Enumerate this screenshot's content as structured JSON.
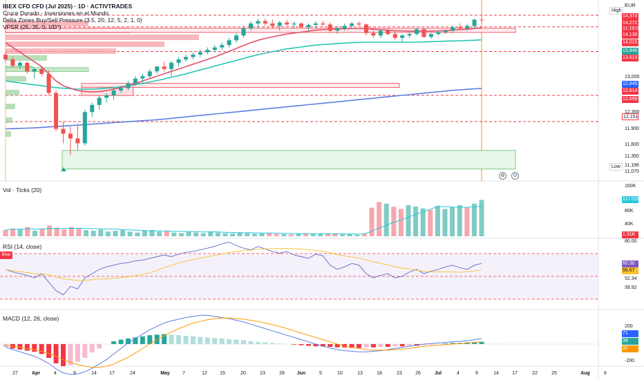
{
  "chart_data": [
    {
      "type": "candlestick",
      "title": "IBEX CFD CFD (Jul 2025) · 1D · ACTIVTRADES",
      "indicators": [
        "Cruce Dorado - Inversiones en el Mundo",
        "Delta Zones Buy/Sell Pressure (3.5, 20, 12, 5, 2, 1, 0)",
        "VPSR (25, 35, 5, UD*)"
      ],
      "currency": "EUR",
      "high_label": "High",
      "low_label": "Low",
      "x_ticks": [
        "27",
        "Apr",
        "4",
        "9",
        "14",
        "17",
        "24",
        "May",
        "7",
        "12",
        "15",
        "20",
        "23",
        "28",
        "Jun",
        "5",
        "10",
        "13",
        "18",
        "23",
        "26",
        "Jul",
        "4",
        "9",
        "14",
        "17",
        "22",
        "25",
        "Aug",
        "6"
      ],
      "y_ticks": [
        11070,
        11350,
        11600,
        11900,
        12151,
        12300,
        12699,
        13000,
        13615,
        14130,
        14373
      ],
      "price_labels": [
        {
          "value": "14,373",
          "color": "#f23645"
        },
        {
          "value": "14,272",
          "color": "#f23645"
        },
        {
          "value": "11:19:06",
          "color": "#f23645"
        },
        {
          "value": "14,130",
          "color": "#f23645"
        },
        {
          "value": "14,015",
          "color": "#f23645"
        },
        {
          "value": "13,846",
          "color": "#26a69a"
        },
        {
          "value": "13,615",
          "color": "#f23645"
        },
        {
          "value": "12,845",
          "color": "#2962ff"
        },
        {
          "value": "12,814",
          "color": "#f23645"
        },
        {
          "value": "12,699",
          "color": "#f23645"
        },
        {
          "value": "12,151",
          "color": "#ffffff"
        }
      ],
      "axis_labels": [
        "13,000",
        "12,300",
        "11,900",
        "11,600",
        "11,350",
        "11,196",
        "11,070"
      ],
      "candles": [
        [
          13550,
          13620,
          13380,
          13450
        ],
        [
          13450,
          13500,
          13280,
          13320
        ],
        [
          13320,
          13420,
          13250,
          13380
        ],
        [
          13380,
          13400,
          13150,
          13200
        ],
        [
          13200,
          13280,
          13050,
          13250
        ],
        [
          13250,
          13300,
          13100,
          13150
        ],
        [
          13150,
          13220,
          12700,
          12750
        ],
        [
          12750,
          12800,
          11950,
          12000
        ],
        [
          12000,
          12150,
          11700,
          11900
        ],
        [
          11900,
          12050,
          11450,
          11800
        ],
        [
          11800,
          12100,
          11550,
          11700
        ],
        [
          11700,
          12400,
          11650,
          12350
        ],
        [
          12350,
          12550,
          12250,
          12500
        ],
        [
          12500,
          12700,
          12400,
          12650
        ],
        [
          12650,
          12750,
          12550,
          12700
        ],
        [
          12700,
          12850,
          12600,
          12800
        ],
        [
          12800,
          12900,
          12750,
          12850
        ],
        [
          12850,
          13000,
          12800,
          12950
        ],
        [
          12950,
          13100,
          12900,
          13050
        ],
        [
          13050,
          13150,
          12950,
          13100
        ],
        [
          13100,
          13250,
          13050,
          13200
        ],
        [
          13200,
          13320,
          13150,
          13300
        ],
        [
          13300,
          13400,
          13200,
          13250
        ],
        [
          13250,
          13420,
          13100,
          13380
        ],
        [
          13380,
          13500,
          13300,
          13450
        ],
        [
          13450,
          13550,
          13400,
          13500
        ],
        [
          13500,
          13600,
          13450,
          13550
        ],
        [
          13550,
          13650,
          13500,
          13600
        ],
        [
          13600,
          13700,
          13550,
          13650
        ],
        [
          13650,
          13750,
          13600,
          13700
        ],
        [
          13700,
          13800,
          13650,
          13750
        ],
        [
          13750,
          13900,
          13700,
          13850
        ],
        [
          13850,
          14000,
          13800,
          13950
        ],
        [
          13950,
          14150,
          13900,
          14100
        ],
        [
          14100,
          14250,
          14050,
          14200
        ],
        [
          14200,
          14300,
          14100,
          14250
        ],
        [
          14250,
          14300,
          14150,
          14200
        ],
        [
          14200,
          14280,
          14100,
          14150
        ],
        [
          14150,
          14250,
          14050,
          14220
        ],
        [
          14220,
          14280,
          14150,
          14180
        ],
        [
          14180,
          14250,
          14100,
          14200
        ],
        [
          14200,
          14230,
          14100,
          14120
        ],
        [
          14120,
          14200,
          14050,
          14170
        ],
        [
          14170,
          14250,
          14100,
          14200
        ],
        [
          14200,
          14260,
          14150,
          14180
        ],
        [
          14180,
          14220,
          14000,
          14050
        ],
        [
          14050,
          14150,
          13980,
          14100
        ],
        [
          14100,
          14200,
          14050,
          14150
        ],
        [
          14150,
          14230,
          14100,
          14200
        ],
        [
          14200,
          14240,
          14150,
          14180
        ],
        [
          14180,
          14200,
          13950,
          14000
        ],
        [
          14000,
          14050,
          13900,
          13950
        ],
        [
          13950,
          14080,
          13900,
          14050
        ],
        [
          14050,
          14100,
          13950,
          13980
        ],
        [
          13980,
          14050,
          13850,
          13900
        ],
        [
          13900,
          13980,
          13820,
          13950
        ],
        [
          13950,
          14020,
          13900,
          13980
        ],
        [
          13980,
          14100,
          13950,
          14080
        ],
        [
          14080,
          14100,
          13900,
          13920
        ],
        [
          13920,
          14000,
          13880,
          13980
        ],
        [
          13980,
          14050,
          13950,
          14020
        ],
        [
          14020,
          14080,
          13980,
          14050
        ],
        [
          14050,
          14150,
          14000,
          14120
        ],
        [
          14120,
          14200,
          14080,
          14100
        ],
        [
          14100,
          14180,
          14050,
          14150
        ],
        [
          14150,
          14300,
          14100,
          14280
        ],
        [
          14280,
          14373,
          14200,
          14272
        ]
      ],
      "sma_red": [
        13800,
        13700,
        13600,
        13500,
        13400,
        13300,
        13150,
        13000,
        12900,
        12850,
        12800,
        12780,
        12770,
        12780,
        12800,
        12830,
        12860,
        12900,
        12950,
        13000,
        13050,
        13100,
        13150,
        13200,
        13250,
        13300,
        13350,
        13400,
        13450,
        13500,
        13560,
        13620,
        13680,
        13740,
        13800,
        13850,
        13890,
        13920,
        13950,
        13980,
        14000,
        14020,
        14040,
        14060,
        14070,
        14080,
        14085,
        14090,
        14095,
        14095,
        14090,
        14080,
        14070,
        14060,
        14050,
        14045,
        14040,
        14040,
        14040,
        14040,
        14045,
        14050,
        14060,
        14070,
        14080,
        14095,
        14110
      ],
      "sma_teal": [
        13000,
        12980,
        12960,
        12940,
        12920,
        12900,
        12880,
        12860,
        12850,
        12840,
        12830,
        12830,
        12830,
        12840,
        12850,
        12860,
        12880,
        12900,
        12920,
        12950,
        12980,
        13010,
        13040,
        13080,
        13110,
        13150,
        13190,
        13230,
        13270,
        13310,
        13350,
        13390,
        13430,
        13470,
        13510,
        13550,
        13580,
        13610,
        13640,
        13670,
        13690,
        13710,
        13730,
        13750,
        13760,
        13770,
        13780,
        13790,
        13800,
        13805,
        13810,
        13810,
        13810,
        13810,
        13810,
        13810,
        13810,
        13810,
        13815,
        13820,
        13825,
        13830,
        13835,
        13840,
        13845,
        13850,
        13860
      ],
      "sma_blue": [
        12000,
        12005,
        12010,
        12015,
        12020,
        12030,
        12040,
        12050,
        12060,
        12070,
        12080,
        12090,
        12100,
        12110,
        12120,
        12130,
        12140,
        12150,
        12160,
        12170,
        12180,
        12190,
        12205,
        12220,
        12235,
        12250,
        12265,
        12280,
        12295,
        12310,
        12325,
        12340,
        12355,
        12370,
        12385,
        12400,
        12415,
        12430,
        12445,
        12460,
        12475,
        12490,
        12505,
        12520,
        12535,
        12550,
        12565,
        12580,
        12595,
        12610,
        12625,
        12640,
        12655,
        12670,
        12685,
        12700,
        12715,
        12730,
        12745,
        12760,
        12775,
        12790,
        12805,
        12815,
        12825,
        12835,
        12845
      ]
    },
    {
      "type": "bar",
      "title": "Vol · Ticks (20)",
      "y_ticks": [
        "160K",
        "120K",
        "80K",
        "40K"
      ],
      "last_labels": [
        {
          "value": "117.02K",
          "color": "#26c6da"
        },
        {
          "value": "1.31K",
          "color": "#f23645"
        }
      ]
    },
    {
      "type": "line",
      "title": "RSI (14, close)",
      "y_ticks": [
        "80.00",
        "52.34",
        "39.92"
      ],
      "last_labels": [
        {
          "value": "60.30",
          "color": "#7e57c2"
        },
        {
          "value": "56.67",
          "color": "#fbc02d"
        }
      ],
      "badge": "Bear"
    },
    {
      "type": "bar",
      "title": "MACD (12, 26, close)",
      "y_ticks": [
        "200",
        "-200"
      ],
      "last_labels": [
        {
          "value": "71",
          "color": "#2962ff"
        },
        {
          "value": "39",
          "color": "#26a69a"
        },
        {
          "value": "31",
          "color": "#ff9800"
        }
      ]
    }
  ]
}
